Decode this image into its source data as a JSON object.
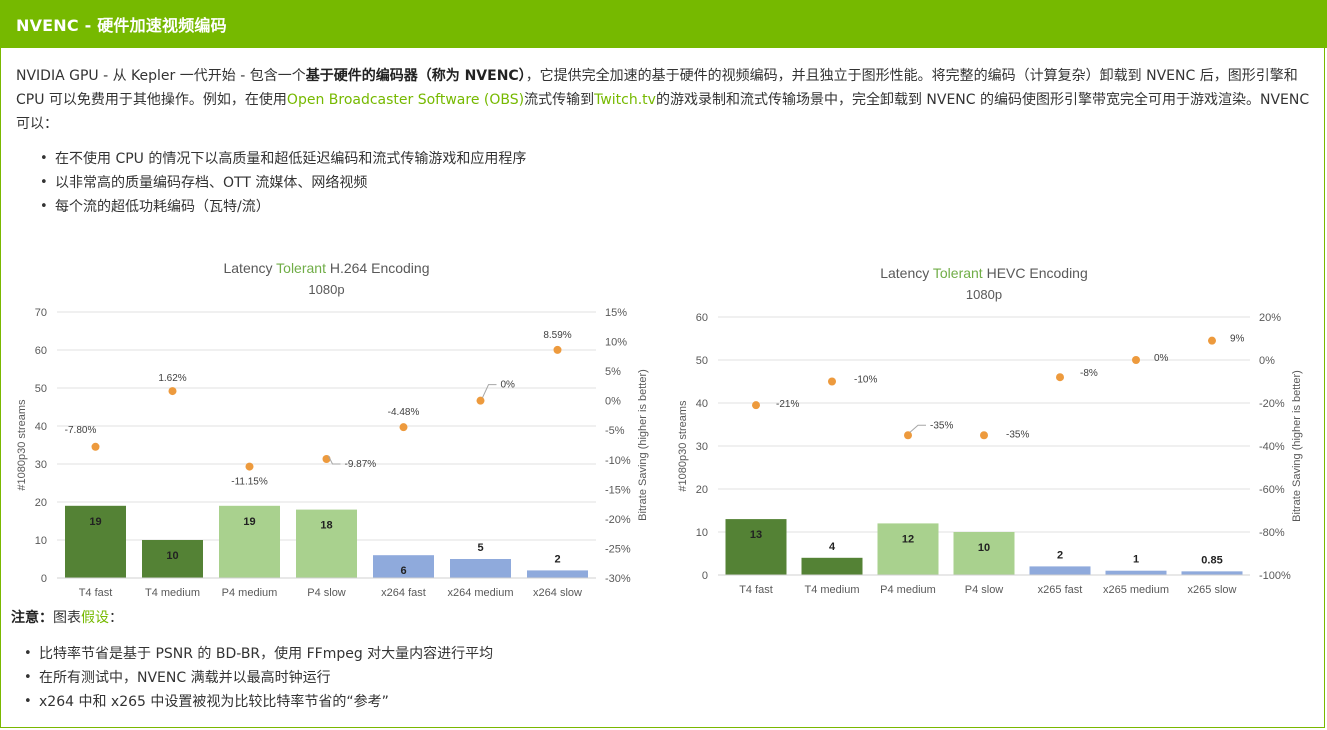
{
  "header": {
    "title": "NVENC - 硬件加速视频编码"
  },
  "intro": {
    "p1": "NVIDIA GPU - 从 Kepler 一代开始 - 包含一个",
    "bold": "基于硬件的编码器（称为 NVENC）",
    "p2": "，它提供完全加速的基于硬件的视频编码，并且独立于图形性能。将完整的编码（计算复杂）卸载到 NVENC 后，图形引擎和 CPU 可以免费用于其他操作。例如，在使用",
    "link_obs": "Open Broadcaster Software (OBS)",
    "p3": "流式传输到",
    "link_twitch": "Twitch.tv",
    "p4": "的游戏录制和流式传输场景中，完全卸载到 NVENC 的编码使图形引擎带宽完全可用于游戏渲染。NVENC 可以："
  },
  "features": [
    "在不使用 CPU 的情况下以高质量和超低延迟编码和流式传输游戏和应用程序",
    "以非常高的质量编码存档、OTT 流媒体、网络视频",
    "每个流的超低功耗编码（瓦特/流）"
  ],
  "note": {
    "label": "注意：",
    "prefix": "图表",
    "link": "假设",
    "suffix": "："
  },
  "notes": [
    "比特率节省是基于 PSNR 的 BD-BR，使用 FFmpeg 对大量内容进行平均",
    "在所有测试中，NVENC 满载并以最高时钟运行",
    "x264 中和 x265 中设置被视为比较比特率节省的“参考”"
  ],
  "colors": {
    "brand": "#76b900",
    "dark_green": "#548235",
    "light_green": "#a9d18e",
    "blue": "#8faadc",
    "dot": "#ed9a3d"
  },
  "chart_data": [
    {
      "type": "bar",
      "title_parts": [
        "Latency ",
        "Tolerant",
        " H.264 Encoding"
      ],
      "subtitle": "1080p",
      "categories": [
        "T4 fast",
        "T4 medium",
        "P4 medium",
        "P4 slow",
        "x264 fast",
        "x264 medium",
        "x264 slow"
      ],
      "series": [
        {
          "values": [
            19,
            10,
            19,
            18,
            6,
            5,
            2
          ],
          "labels": [
            "19",
            "10",
            "19",
            "18",
            "6",
            "5",
            "2"
          ]
        },
        {
          "axis": "right",
          "values": [
            -7.8,
            1.62,
            -11.15,
            -9.87,
            -4.48,
            0,
            8.59
          ],
          "labels": [
            "-7.80%",
            "1.62%",
            "-11.15%",
            "-9.87%",
            "-4.48%",
            "0%",
            "8.59%"
          ]
        }
      ],
      "bar_colors": [
        "#548235",
        "#548235",
        "#a9d18e",
        "#a9d18e",
        "#8faadc",
        "#8faadc",
        "#8faadc"
      ],
      "ylabel": "#1080p30 streams",
      "ylabel_right": "Bitrate Saving (higher is better)",
      "ylim": [
        0,
        70
      ],
      "yticks": [
        "0",
        "10",
        "20",
        "30",
        "40",
        "50",
        "60",
        "70"
      ],
      "ylim_right": [
        -30,
        15
      ],
      "yticks_right": [
        "-30%",
        "-25%",
        "-20%",
        "-15%",
        "-10%",
        "-5%",
        "0%",
        "5%",
        "10%",
        "15%"
      ],
      "grid": true
    },
    {
      "type": "bar",
      "title_parts": [
        "Latency ",
        "Tolerant",
        " HEVC Encoding"
      ],
      "subtitle": "1080p",
      "categories": [
        "T4 fast",
        "T4 medium",
        "P4 medium",
        "P4 slow",
        "x265 fast",
        "x265 medium",
        "x265 slow"
      ],
      "series": [
        {
          "values": [
            13,
            4,
            12,
            10,
            2,
            1,
            0.85
          ],
          "labels": [
            "13",
            "4",
            "12",
            "10",
            "2",
            "1",
            "0.85"
          ]
        },
        {
          "axis": "right",
          "values": [
            -21,
            -10,
            -35,
            -35,
            -8,
            0,
            9
          ],
          "labels": [
            "-21%",
            "-10%",
            "-35%",
            "-35%",
            "-8%",
            "0%",
            "9%"
          ]
        }
      ],
      "bar_colors": [
        "#548235",
        "#548235",
        "#a9d18e",
        "#a9d18e",
        "#8faadc",
        "#8faadc",
        "#8faadc"
      ],
      "ylabel": "#1080p30 streams",
      "ylabel_right": "Bitrate Saving (higher is better)",
      "ylim": [
        0,
        60
      ],
      "yticks": [
        "0",
        "10",
        "20",
        "30",
        "40",
        "50",
        "60"
      ],
      "ylim_right": [
        -100,
        20
      ],
      "yticks_right": [
        "-100%",
        "-80%",
        "-60%",
        "-40%",
        "-20%",
        "0%",
        "20%"
      ],
      "grid": true
    }
  ]
}
